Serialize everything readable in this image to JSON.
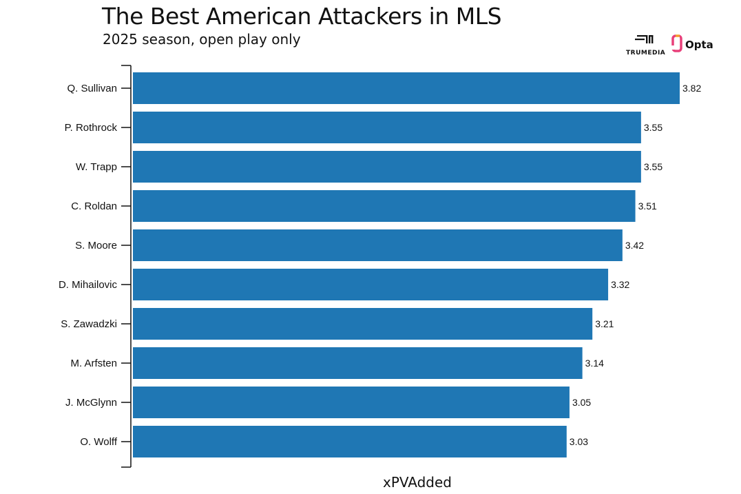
{
  "header": {
    "title": "The Best American Attackers in MLS",
    "subtitle": "2025 season, open play only"
  },
  "logos": {
    "trumedia_text": "TRUMEDIA",
    "opta_text": "Opta",
    "opta_color": "#e8407a"
  },
  "chart_data": {
    "type": "bar",
    "orientation": "horizontal",
    "title": "The Best American Attackers in MLS",
    "subtitle": "2025 season, open play only",
    "xlabel": "xPVAdded",
    "ylabel": "",
    "categories": [
      "Q. Sullivan",
      "P. Rothrock",
      "W. Trapp",
      "C. Roldan",
      "S. Moore",
      "D. Mihailovic",
      "S. Zawadzki",
      "M. Arfsten",
      "J. McGlynn",
      "O. Wolff"
    ],
    "values": [
      3.82,
      3.55,
      3.55,
      3.51,
      3.42,
      3.32,
      3.21,
      3.14,
      3.05,
      3.03
    ],
    "value_labels": [
      "3.82",
      "3.55",
      "3.55",
      "3.51",
      "3.42",
      "3.32",
      "3.21",
      "3.14",
      "3.05",
      "3.03"
    ],
    "xlim": [
      0,
      3.82
    ],
    "bar_color": "#1f77b4",
    "grid": false,
    "legend": "none"
  }
}
